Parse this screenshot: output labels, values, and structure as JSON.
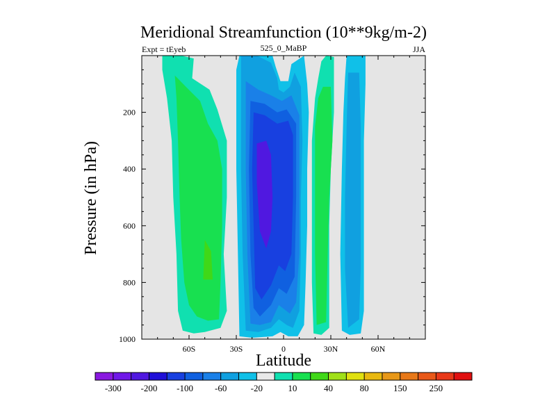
{
  "chart_data": {
    "type": "contour",
    "title": "Meridional Streamfunction (10**9kg/m-2)",
    "left_string": "Expt = tEyeb",
    "center_string": "525_0_MaBP",
    "right_string": "JJA",
    "xlabel": "Latitude",
    "ylabel": "Pressure (in hPa)",
    "xlim": [
      -90,
      90
    ],
    "ylim": [
      1000,
      0
    ],
    "xticks": [
      {
        "value": -60,
        "label": "60S"
      },
      {
        "value": -30,
        "label": "30S"
      },
      {
        "value": 0,
        "label": "0"
      },
      {
        "value": 30,
        "label": "30N"
      },
      {
        "value": 60,
        "label": "60N"
      }
    ],
    "yticks": [
      {
        "value": 200,
        "label": "200"
      },
      {
        "value": 400,
        "label": "400"
      },
      {
        "value": 600,
        "label": "600"
      },
      {
        "value": 800,
        "label": "800"
      },
      {
        "value": 1000,
        "label": "1000"
      }
    ],
    "colorbar": {
      "colors": [
        "#8a18e0",
        "#7018e8",
        "#5018e0",
        "#2010d8",
        "#1840e0",
        "#1060e0",
        "#1a80e8",
        "#10a0e0",
        "#10c0e8",
        "#e8e8e8",
        "#10e0b0",
        "#18e050",
        "#40d818",
        "#a0e018",
        "#e0e010",
        "#e8b810",
        "#e89818",
        "#e87818",
        "#e85818",
        "#e83818",
        "#e01010"
      ],
      "labels": [
        "-300",
        "-200",
        "-100",
        "-60",
        "-20",
        "10",
        "40",
        "80",
        "150",
        "250"
      ]
    },
    "regions": [
      {
        "name": "sh-positive-cell-outer",
        "level": "10",
        "color": "#10e0b0",
        "points": [
          [
            -77,
            0
          ],
          [
            -65,
            0
          ],
          [
            -57,
            10
          ],
          [
            -58,
            80
          ],
          [
            -47,
            120
          ],
          [
            -42,
            190
          ],
          [
            -36,
            300
          ],
          [
            -36,
            500
          ],
          [
            -38,
            700
          ],
          [
            -36,
            900
          ],
          [
            -40,
            960
          ],
          [
            -50,
            975
          ],
          [
            -57,
            980
          ],
          [
            -64,
            970
          ],
          [
            -67,
            900
          ],
          [
            -68,
            700
          ],
          [
            -70,
            500
          ],
          [
            -71,
            300
          ],
          [
            -74,
            150
          ],
          [
            -77,
            50
          ]
        ]
      },
      {
        "name": "sh-positive-cell-inner",
        "level": "40",
        "color": "#18e050",
        "points": [
          [
            -69,
            70
          ],
          [
            -62,
            110
          ],
          [
            -53,
            160
          ],
          [
            -48,
            240
          ],
          [
            -42,
            300
          ],
          [
            -39,
            400
          ],
          [
            -39,
            600
          ],
          [
            -40,
            800
          ],
          [
            -41,
            930
          ],
          [
            -48,
            935
          ],
          [
            -55,
            920
          ],
          [
            -60,
            880
          ],
          [
            -63,
            800
          ],
          [
            -65,
            650
          ],
          [
            -66,
            500
          ],
          [
            -67,
            300
          ],
          [
            -68,
            150
          ]
        ]
      },
      {
        "name": "sh-positive-cell-max",
        "level": "80",
        "color": "#40d818",
        "points": [
          [
            -50,
            650
          ],
          [
            -46,
            690
          ],
          [
            -45,
            790
          ],
          [
            -51,
            790
          ]
        ]
      },
      {
        "name": "hadley-negative-outer",
        "level": "-20",
        "color": "#10c0e8",
        "points": [
          [
            -28,
            0
          ],
          [
            -7,
            0
          ],
          [
            -5,
            40
          ],
          [
            -2,
            90
          ],
          [
            3,
            90
          ],
          [
            5,
            30
          ],
          [
            13,
            0
          ],
          [
            15,
            100
          ],
          [
            16,
            200
          ],
          [
            15,
            400
          ],
          [
            15,
            600
          ],
          [
            14,
            800
          ],
          [
            13,
            950
          ],
          [
            9,
            990
          ],
          [
            3,
            990
          ],
          [
            -2,
            975
          ],
          [
            -7,
            990
          ],
          [
            -20,
            995
          ],
          [
            -28,
            990
          ],
          [
            -29,
            700
          ],
          [
            -30,
            400
          ],
          [
            -30,
            150
          ],
          [
            -30,
            50
          ]
        ]
      },
      {
        "name": "hadley-negative-l2",
        "level": "-60",
        "color": "#10a0e0",
        "points": [
          [
            -27,
            0
          ],
          [
            -17,
            0
          ],
          [
            -8,
            25
          ],
          [
            -4,
            80
          ],
          [
            -3,
            120
          ],
          [
            0,
            130
          ],
          [
            4,
            110
          ],
          [
            7,
            60
          ],
          [
            11,
            110
          ],
          [
            12,
            300
          ],
          [
            11,
            500
          ],
          [
            11,
            700
          ],
          [
            10,
            900
          ],
          [
            6,
            960
          ],
          [
            2,
            950
          ],
          [
            -3,
            930
          ],
          [
            -8,
            960
          ],
          [
            -16,
            975
          ],
          [
            -24,
            970
          ],
          [
            -26,
            700
          ],
          [
            -27,
            400
          ],
          [
            -27,
            150
          ]
        ]
      },
      {
        "name": "hadley-negative-l3",
        "level": "-100",
        "color": "#1a80e8",
        "points": [
          [
            -24,
            90
          ],
          [
            -16,
            120
          ],
          [
            -8,
            140
          ],
          [
            -1,
            160
          ],
          [
            5,
            140
          ],
          [
            10,
            210
          ],
          [
            10,
            450
          ],
          [
            10,
            700
          ],
          [
            8,
            870
          ],
          [
            4,
            910
          ],
          [
            -3,
            880
          ],
          [
            -8,
            940
          ],
          [
            -15,
            950
          ],
          [
            -21,
            945
          ],
          [
            -23,
            700
          ],
          [
            -24,
            400
          ]
        ]
      },
      {
        "name": "hadley-negative-l4",
        "level": "-150",
        "color": "#1060e0",
        "points": [
          [
            -21,
            160
          ],
          [
            -12,
            170
          ],
          [
            -4,
            200
          ],
          [
            2,
            190
          ],
          [
            8,
            240
          ],
          [
            8,
            500
          ],
          [
            7,
            780
          ],
          [
            2,
            840
          ],
          [
            -3,
            820
          ],
          [
            -8,
            880
          ],
          [
            -15,
            920
          ],
          [
            -19,
            890
          ],
          [
            -21,
            700
          ],
          [
            -22,
            400
          ]
        ]
      },
      {
        "name": "hadley-negative-l5",
        "level": "-200",
        "color": "#1840e0",
        "points": [
          [
            -19,
            200
          ],
          [
            -12,
            210
          ],
          [
            -4,
            240
          ],
          [
            3,
            230
          ],
          [
            6,
            280
          ],
          [
            6,
            500
          ],
          [
            5,
            700
          ],
          [
            1,
            760
          ],
          [
            -3,
            740
          ],
          [
            -8,
            810
          ],
          [
            -14,
            860
          ],
          [
            -18,
            820
          ],
          [
            -19,
            600
          ],
          [
            -20,
            400
          ]
        ]
      },
      {
        "name": "hadley-negative-core",
        "level": "-300",
        "color": "#5018e0",
        "points": [
          [
            -17,
            310
          ],
          [
            -11,
            300
          ],
          [
            -8,
            350
          ],
          [
            -7,
            500
          ],
          [
            -8,
            620
          ],
          [
            -11,
            680
          ],
          [
            -15,
            620
          ],
          [
            -17,
            450
          ]
        ]
      },
      {
        "name": "nh-positive-cell-outer",
        "level": "10",
        "color": "#10e0b0",
        "points": [
          [
            27,
            0
          ],
          [
            32,
            5
          ],
          [
            32,
            200
          ],
          [
            30,
            400
          ],
          [
            29,
            600
          ],
          [
            29,
            800
          ],
          [
            29,
            960
          ],
          [
            24,
            985
          ],
          [
            19,
            980
          ],
          [
            18,
            800
          ],
          [
            18,
            500
          ],
          [
            18,
            300
          ],
          [
            20,
            150
          ],
          [
            22,
            80
          ],
          [
            24,
            20
          ]
        ]
      },
      {
        "name": "nh-positive-cell-inner",
        "level": "40",
        "color": "#18e050",
        "points": [
          [
            25,
            110
          ],
          [
            30,
            110
          ],
          [
            31,
            300
          ],
          [
            29,
            500
          ],
          [
            28,
            700
          ],
          [
            27,
            940
          ],
          [
            21,
            950
          ],
          [
            20,
            700
          ],
          [
            20,
            450
          ],
          [
            20,
            250
          ],
          [
            22,
            150
          ]
        ]
      },
      {
        "name": "nh-negative-cell-outer",
        "level": "-20",
        "color": "#10c0e8",
        "points": [
          [
            40,
            0
          ],
          [
            52,
            0
          ],
          [
            52,
            100
          ],
          [
            51,
            300
          ],
          [
            51,
            600
          ],
          [
            51,
            900
          ],
          [
            49,
            980
          ],
          [
            42,
            985
          ],
          [
            37,
            970
          ],
          [
            36,
            700
          ],
          [
            37,
            400
          ],
          [
            38,
            200
          ],
          [
            39,
            80
          ]
        ]
      },
      {
        "name": "nh-negative-cell-inner",
        "level": "-60",
        "color": "#10a0e0",
        "points": [
          [
            41,
            60
          ],
          [
            48,
            60
          ],
          [
            49,
            250
          ],
          [
            49,
            500
          ],
          [
            49,
            750
          ],
          [
            48,
            930
          ],
          [
            41,
            960
          ],
          [
            39,
            750
          ],
          [
            39,
            500
          ],
          [
            40,
            250
          ]
        ]
      }
    ]
  }
}
